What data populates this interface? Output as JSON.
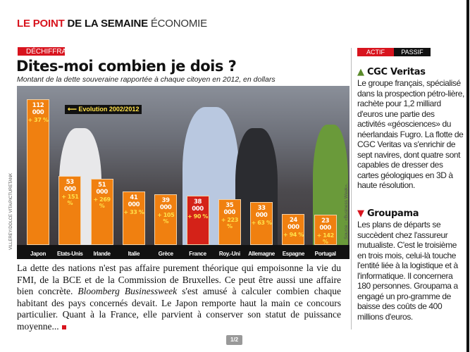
{
  "header": {
    "part1": "LE POINT",
    "part2": "DE LA SEMAINE",
    "part3": "ÉCONOMIE"
  },
  "article": {
    "kicker": "DÉCHIFFRAGE",
    "title": "Dites-moi combien je dois ?",
    "subtitle": "Montant de la dette souveraine rapportée à chaque citoyen en 2012, en dollars",
    "photo_credit": "VILLEREY/DOLCE VITA/PICTURETANK",
    "source": "Source : «Business Week».",
    "body_1": "La dette des nations n'est pas affaire purement théorique qui empoisonne la vie du FMI, de la BCE et de la Commission de Bruxelles. Ce peut être aussi une affaire bien concrète. ",
    "body_italic": "Bloomberg Businessweek",
    "body_2": " s'est amusé à calculer combien chaque habitant des pays concernés devait. Le Japon remporte haut la main ce concours particulier. Quant à la France, elle parvient à conserver son statut de puissance moyenne..."
  },
  "chart_data": {
    "type": "bar",
    "title": "Montant de la dette souveraine rapportée à chaque citoyen en 2012, en dollars",
    "annotation": "Evolution 2002/2012",
    "categories": [
      "Japon",
      "Etats-Unis",
      "Irlande",
      "Italie",
      "Grèce",
      "France",
      "Roy.-Uni",
      "Allemagne",
      "Espagne",
      "Portugal"
    ],
    "values": [
      112000,
      53000,
      51000,
      41000,
      39000,
      38000,
      35000,
      33000,
      24000,
      23000
    ],
    "value_labels": [
      "112 000",
      "53 000",
      "51 000",
      "41 000",
      "39 000",
      "38 000",
      "35 000",
      "33 000",
      "24 000",
      "23 000"
    ],
    "evolution": [
      "+ 37 %",
      "+ 151 %",
      "+ 269 %",
      "+ 33 %",
      "+ 105 %",
      "+ 90 %",
      "+ 223 %",
      "+ 63 %",
      "+ 94 %",
      "+ 142 %"
    ],
    "highlight": "France",
    "colors": {
      "bar": "#f08010",
      "highlight": "#d42218",
      "evolution": "#ffe14a"
    },
    "ylim": [
      0,
      112000
    ]
  },
  "sidebar": {
    "tab_active": "ACTIF",
    "tab_passive": "PASSIF",
    "items": [
      {
        "arrow": "▲",
        "title": "CGC Veritas",
        "text": "Le groupe français, spécialisé dans la prospection pétro-lière, rachète pour 1,2 milliard d'euros une partie des activités «géosciences» du néerlandais Fugro. La flotte de CGC Veritas va s'enrichir de sept navires, dont quatre sont capables de dresser des cartes géologiques en 3D à haute résolution."
      },
      {
        "arrow": "▼",
        "title": "Groupama",
        "text": "Les plans de départs se succèdent chez l'assureur mutualiste. C'est le troisième en trois mois, celui-là touche l'entité liée à la logistique et à l'informatique. Il concernera 180 personnes. Groupama a engagé un pro-gramme de baisse des coûts de 400 millions d'euros."
      }
    ]
  },
  "pager": "1/2"
}
